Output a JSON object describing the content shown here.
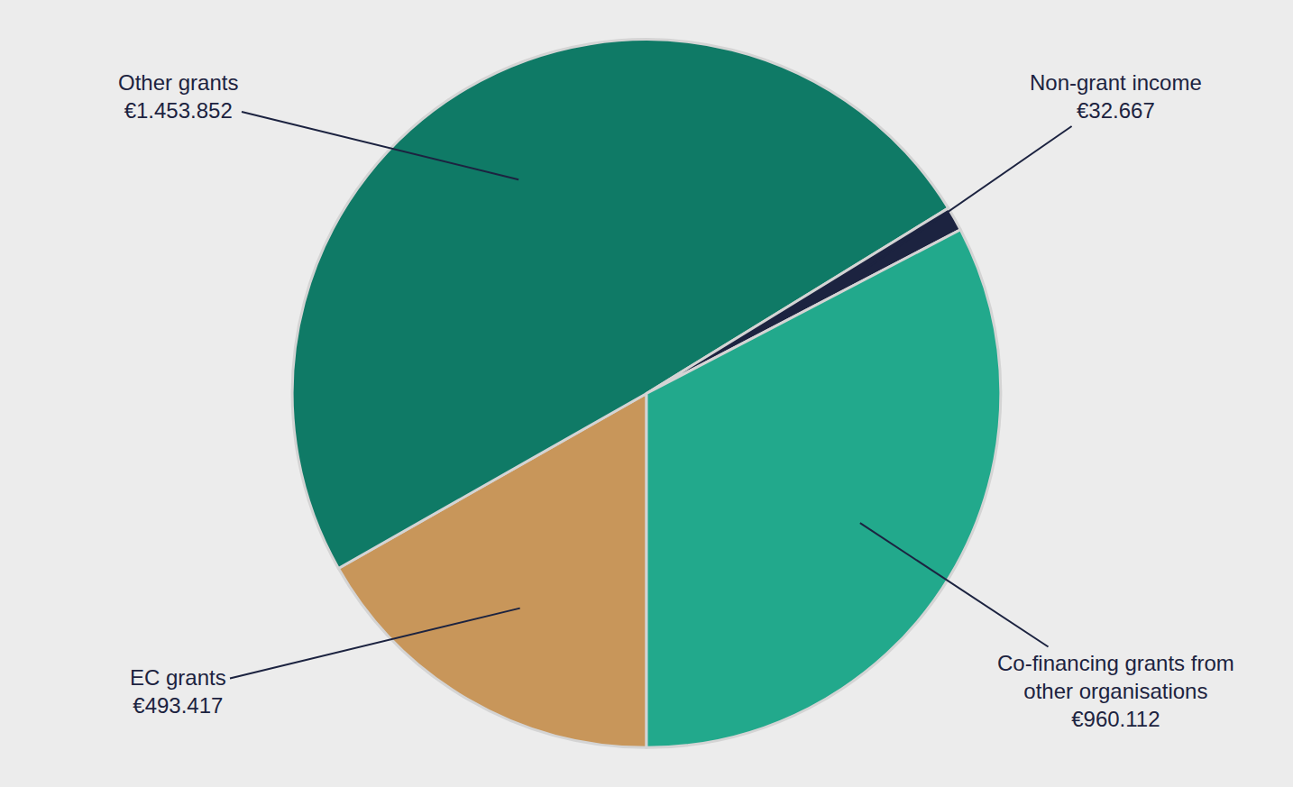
{
  "chart_data": {
    "type": "pie",
    "categories": [
      "EC grants",
      "Other grants",
      "Non-grant income",
      "Co-financing grants from other organisations"
    ],
    "values": [
      493417,
      1453852,
      32667,
      960112
    ],
    "value_labels": [
      "€493.417",
      "€1.453.852",
      "€32.667",
      "€960.112"
    ],
    "colors": [
      "#c8965a",
      "#0f7a66",
      "#1c2340",
      "#22a98c"
    ]
  }
}
